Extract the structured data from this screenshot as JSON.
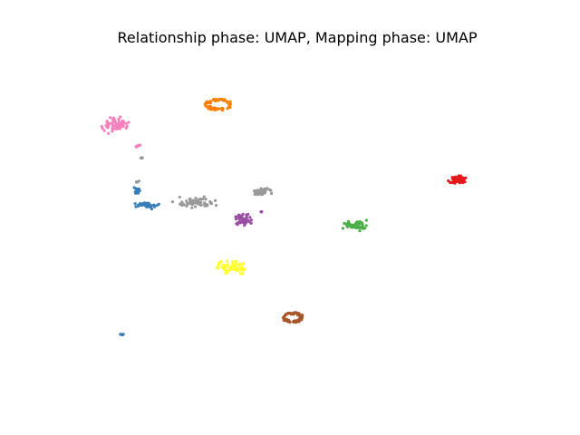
{
  "chart_data": {
    "type": "scatter",
    "title": "Relationship phase: UMAP, Mapping phase: UMAP",
    "xlabel": "",
    "ylabel": "",
    "axes_visible": false,
    "grid": false,
    "legend": "none",
    "xlim": [
      0,
      10
    ],
    "ylim": [
      0,
      10
    ],
    "clusters": [
      {
        "color": "#ff7f00",
        "shape": "ring",
        "center": [
          3.25,
          8.45
        ],
        "spread": [
          0.28,
          0.16
        ],
        "count": 70
      },
      {
        "color": "#f781bf",
        "shape": "blob",
        "center": [
          0.95,
          7.85
        ],
        "spread": [
          0.25,
          0.18
        ],
        "count": 60
      },
      {
        "color": "#f781bf",
        "shape": "blob",
        "center": [
          1.45,
          7.2
        ],
        "spread": [
          0.06,
          0.05
        ],
        "count": 6
      },
      {
        "color": "#999999",
        "shape": "blob",
        "center": [
          1.55,
          6.85
        ],
        "spread": [
          0.02,
          0.02
        ],
        "count": 3
      },
      {
        "color": "#999999",
        "shape": "blob",
        "center": [
          1.45,
          6.15
        ],
        "spread": [
          0.03,
          0.05
        ],
        "count": 4
      },
      {
        "color": "#377eb8",
        "shape": "blob",
        "center": [
          1.45,
          5.9
        ],
        "spread": [
          0.08,
          0.08
        ],
        "count": 18
      },
      {
        "color": "#377eb8",
        "shape": "blob",
        "center": [
          1.65,
          5.45
        ],
        "spread": [
          0.2,
          0.08
        ],
        "count": 38
      },
      {
        "color": "#999999",
        "shape": "blob",
        "center": [
          2.7,
          5.55
        ],
        "spread": [
          0.35,
          0.13
        ],
        "count": 60
      },
      {
        "color": "#999999",
        "shape": "blob",
        "center": [
          4.2,
          5.85
        ],
        "spread": [
          0.18,
          0.1
        ],
        "count": 40
      },
      {
        "color": "#984ea3",
        "shape": "blob",
        "center": [
          3.8,
          5.0
        ],
        "spread": [
          0.15,
          0.15
        ],
        "count": 50
      },
      {
        "color": "#984ea3",
        "shape": "blob",
        "center": [
          4.2,
          5.25
        ],
        "spread": [
          0.02,
          0.02
        ],
        "count": 3
      },
      {
        "color": "#e41a1c",
        "shape": "blob",
        "center": [
          8.55,
          6.2
        ],
        "spread": [
          0.18,
          0.09
        ],
        "count": 80
      },
      {
        "color": "#4daf4a",
        "shape": "blob",
        "center": [
          6.3,
          4.85
        ],
        "spread": [
          0.22,
          0.13
        ],
        "count": 55
      },
      {
        "color": "#ffff33",
        "shape": "blob",
        "center": [
          3.55,
          3.6
        ],
        "spread": [
          0.33,
          0.14
        ],
        "count": 60
      },
      {
        "color": "#a65628",
        "shape": "ring",
        "center": [
          4.9,
          2.1
        ],
        "spread": [
          0.22,
          0.14
        ],
        "count": 70
      },
      {
        "color": "#377eb8",
        "shape": "blob",
        "center": [
          1.1,
          1.6
        ],
        "spread": [
          0.04,
          0.02
        ],
        "count": 6
      }
    ]
  }
}
